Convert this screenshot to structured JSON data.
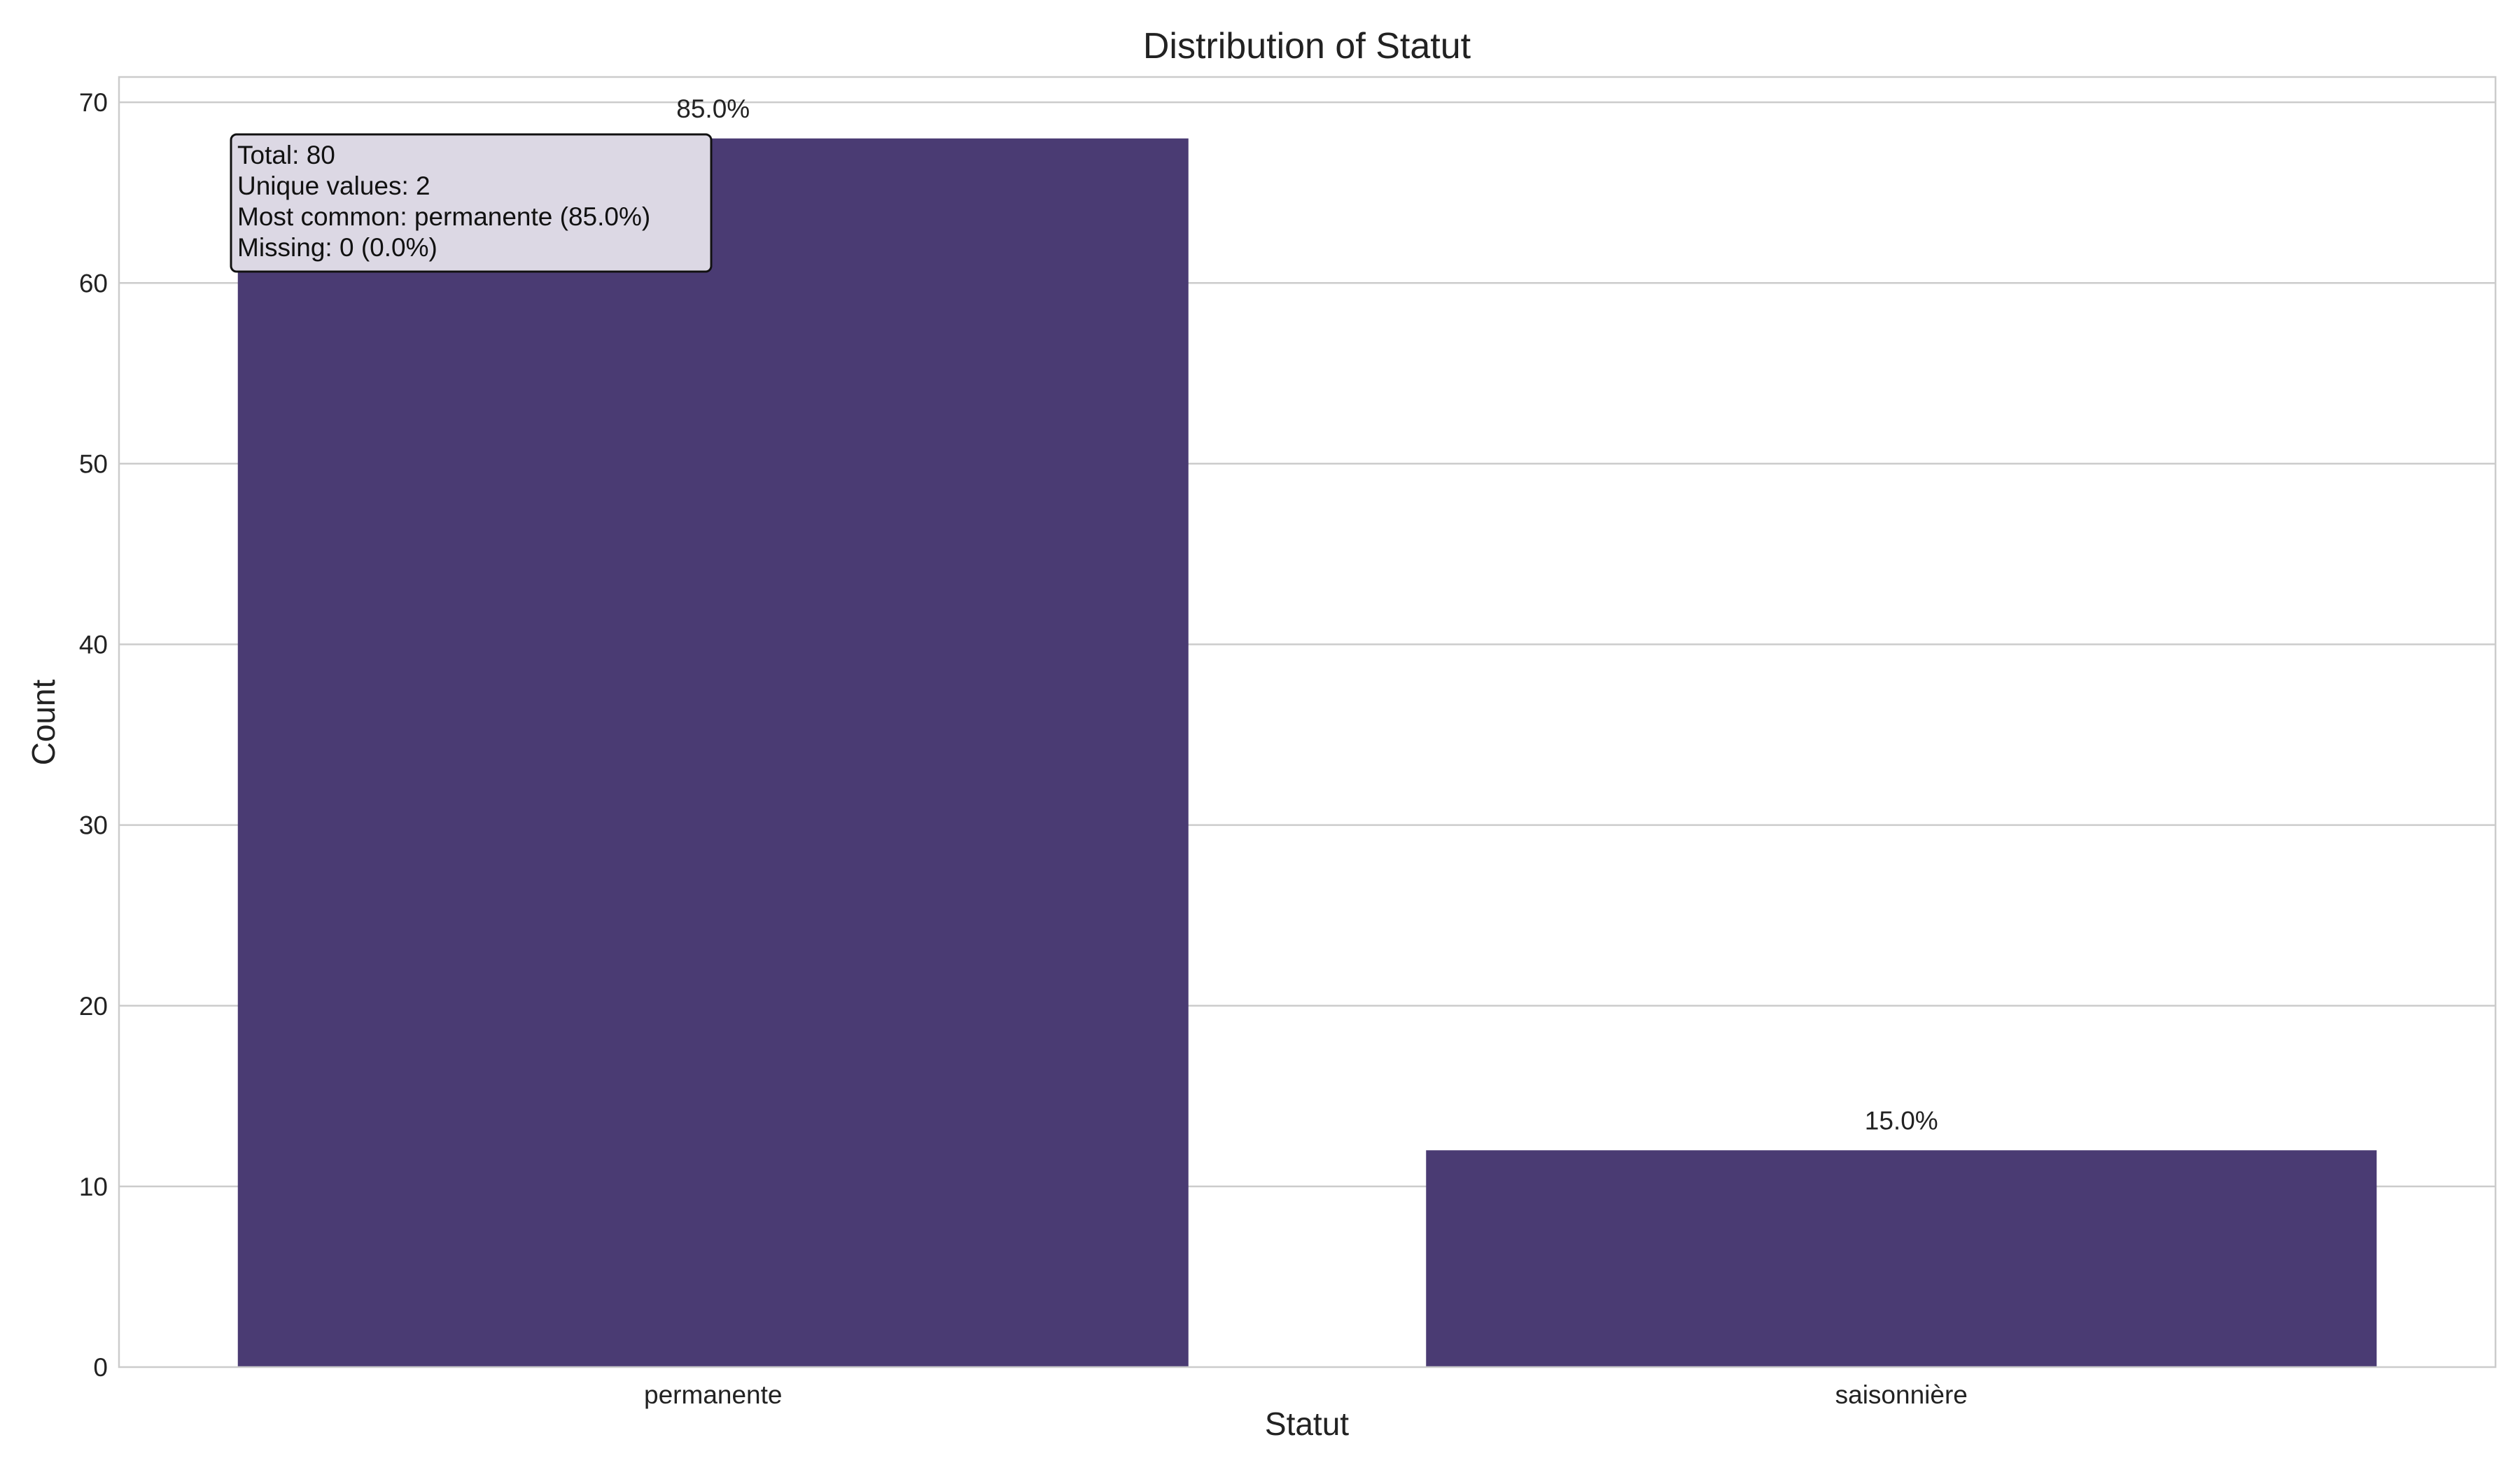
{
  "chart_data": {
    "type": "bar",
    "title": "Distribution of Statut",
    "xlabel": "Statut",
    "ylabel": "Count",
    "categories": [
      "permanente",
      "saisonnière"
    ],
    "values": [
      68,
      12
    ],
    "percent_labels": [
      "85.0%",
      "15.0%"
    ],
    "ylim": [
      0,
      71.4
    ],
    "yticks": [
      0,
      10,
      20,
      30,
      40,
      50,
      60,
      70
    ],
    "grid": true,
    "bar_color": "#4a3b73",
    "stats_box": {
      "lines": [
        "Total: 80",
        "Unique values: 2",
        "Most common: permanente (85.0%)",
        "Missing: 0 (0.0%)"
      ]
    }
  }
}
